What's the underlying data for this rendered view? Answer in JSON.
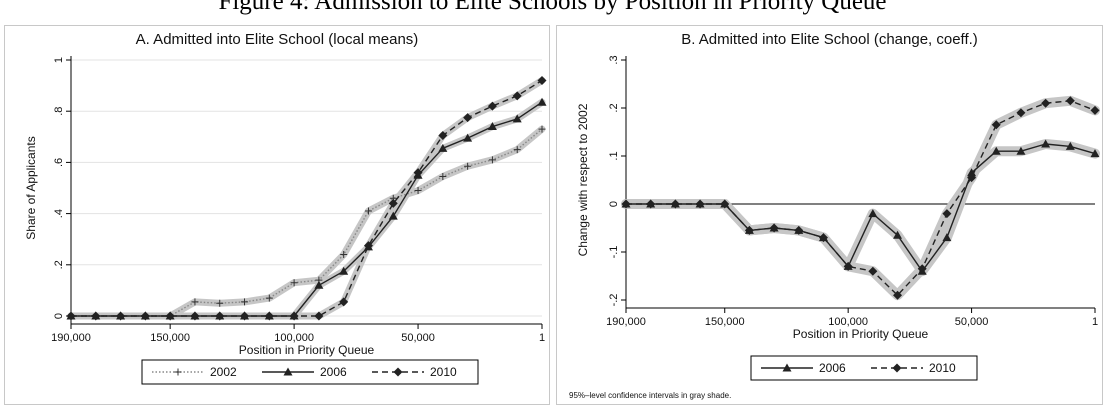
{
  "figure_title": "Figure 4: Admission to Elite Schools by Position in Priority Queue",
  "chart_data": [
    {
      "type": "line",
      "title": "A. Admitted into Elite School (local means)",
      "xlabel": "Position in Priority Queue",
      "ylabel": "Share of Applicants",
      "x_reversed": true,
      "xlim": [
        190000,
        1
      ],
      "ylim": [
        0,
        1
      ],
      "x_ticks": [
        190000,
        150000,
        100000,
        50000,
        1
      ],
      "x_tick_labels": [
        "190,000",
        "150,000",
        "100,000",
        "50,000",
        "1"
      ],
      "y_ticks": [
        0,
        0.2,
        0.4,
        0.6,
        0.8,
        1
      ],
      "y_tick_labels": [
        "0",
        ".2",
        ".4",
        ".6",
        ".8",
        "1"
      ],
      "x": [
        190000,
        180000,
        170000,
        160000,
        150000,
        140000,
        130000,
        120000,
        110000,
        100000,
        90000,
        80000,
        70000,
        60000,
        50000,
        40000,
        30000,
        20000,
        10000,
        1
      ],
      "series": [
        {
          "name": "2002",
          "style": "dotted",
          "marker": "plus",
          "values": [
            0,
            0,
            0,
            0,
            0,
            0.055,
            0.05,
            0.055,
            0.07,
            0.13,
            0.14,
            0.24,
            0.41,
            0.46,
            0.49,
            0.545,
            0.585,
            0.61,
            0.65,
            0.73
          ]
        },
        {
          "name": "2006",
          "style": "solid",
          "marker": "triangle",
          "values": [
            0,
            0,
            0,
            0,
            0,
            0,
            0,
            0,
            0,
            0,
            0.12,
            0.175,
            0.27,
            0.39,
            0.55,
            0.655,
            0.695,
            0.74,
            0.77,
            0.835
          ]
        },
        {
          "name": "2010",
          "style": "dashed",
          "marker": "diamond",
          "values": [
            0,
            0,
            0,
            0,
            0,
            0,
            0,
            0,
            0,
            0,
            0,
            0.055,
            0.275,
            0.44,
            0.56,
            0.705,
            0.775,
            0.82,
            0.86,
            0.92
          ]
        }
      ],
      "legend_position": "bottom",
      "grid": true
    },
    {
      "type": "line",
      "title": "B. Admitted into Elite School (change, coeff.)",
      "xlabel": "Position in Priority Queue",
      "ylabel": "Change with respect to 2002",
      "x_reversed": true,
      "xlim": [
        190000,
        1
      ],
      "ylim": [
        -0.2,
        0.3
      ],
      "x_ticks": [
        190000,
        150000,
        100000,
        50000,
        1
      ],
      "x_tick_labels": [
        "190,000",
        "150,000",
        "100,000",
        "50,000",
        "1"
      ],
      "y_ticks": [
        -0.2,
        -0.1,
        0,
        0.1,
        0.2,
        0.3
      ],
      "y_tick_labels": [
        "-.2",
        "-.1",
        "0",
        ".1",
        ".2",
        ".3"
      ],
      "x": [
        190000,
        180000,
        170000,
        160000,
        150000,
        140000,
        130000,
        120000,
        110000,
        100000,
        90000,
        80000,
        70000,
        60000,
        50000,
        40000,
        30000,
        20000,
        10000,
        1
      ],
      "series": [
        {
          "name": "2006",
          "style": "solid",
          "marker": "triangle",
          "ci": "gray shade",
          "values": [
            0,
            0,
            0,
            0,
            0,
            -0.055,
            -0.05,
            -0.055,
            -0.07,
            -0.13,
            -0.02,
            -0.065,
            -0.14,
            -0.07,
            0.065,
            0.11,
            0.11,
            0.125,
            0.12,
            0.105
          ]
        },
        {
          "name": "2010",
          "style": "dashed",
          "marker": "diamond",
          "ci": "gray shade",
          "values": [
            0,
            0,
            0,
            0,
            0,
            -0.055,
            -0.05,
            -0.055,
            -0.07,
            -0.13,
            -0.14,
            -0.19,
            -0.135,
            -0.02,
            0.055,
            0.165,
            0.19,
            0.21,
            0.215,
            0.195
          ]
        }
      ],
      "note": "95%–level confidence intervals in gray shade.",
      "reference_line_y": 0,
      "legend_position": "bottom",
      "grid": false
    }
  ]
}
